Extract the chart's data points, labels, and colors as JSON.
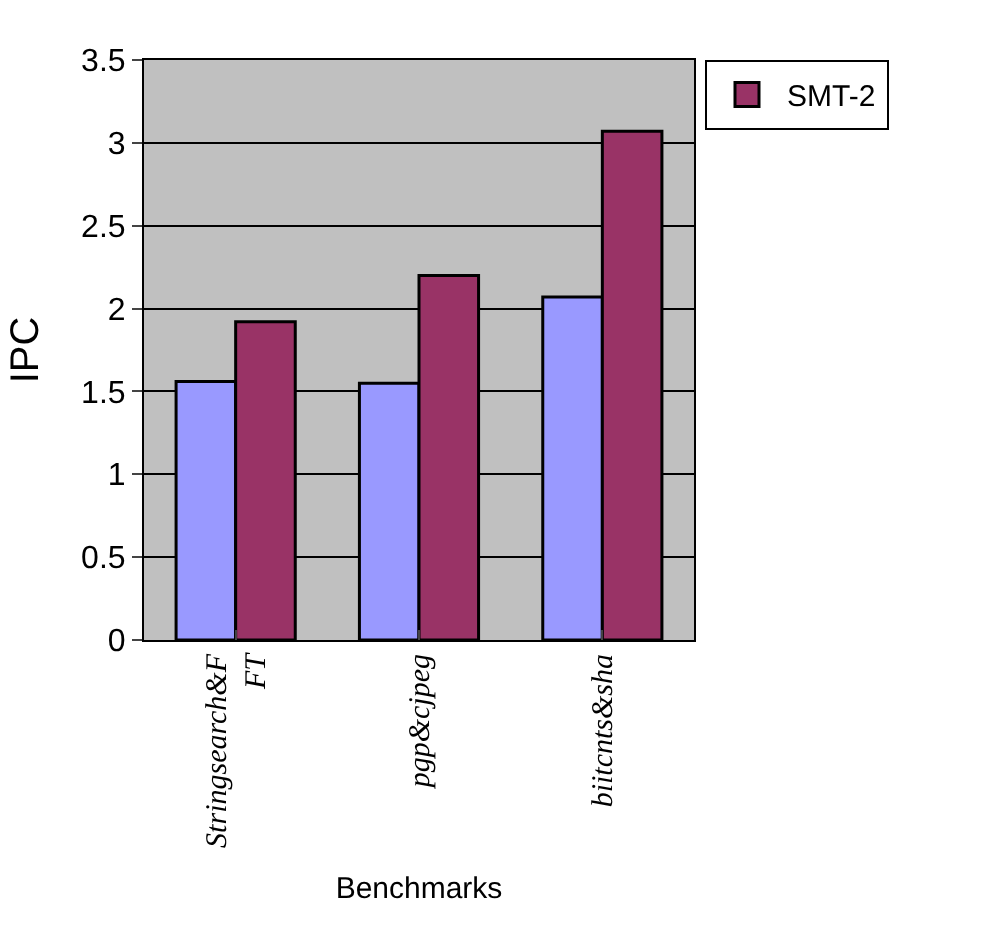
{
  "chart_data": {
    "type": "bar",
    "xlabel": "Benchmarks",
    "ylabel": "IPC",
    "categories": [
      "Stringsearch&FFT",
      "pgp&cjpeg",
      "biitcnts&sha"
    ],
    "series": [
      {
        "color": "#9999ff",
        "values": [
          1.56,
          1.55,
          2.07
        ]
      },
      {
        "name": "SMT-2",
        "color": "#993366",
        "values": [
          1.92,
          2.2,
          3.07
        ]
      }
    ],
    "ylim": [
      0,
      3.5
    ],
    "yticks": [
      0,
      0.5,
      1,
      1.5,
      2,
      2.5,
      3,
      3.5
    ],
    "grid": "y",
    "legend": "top right"
  }
}
